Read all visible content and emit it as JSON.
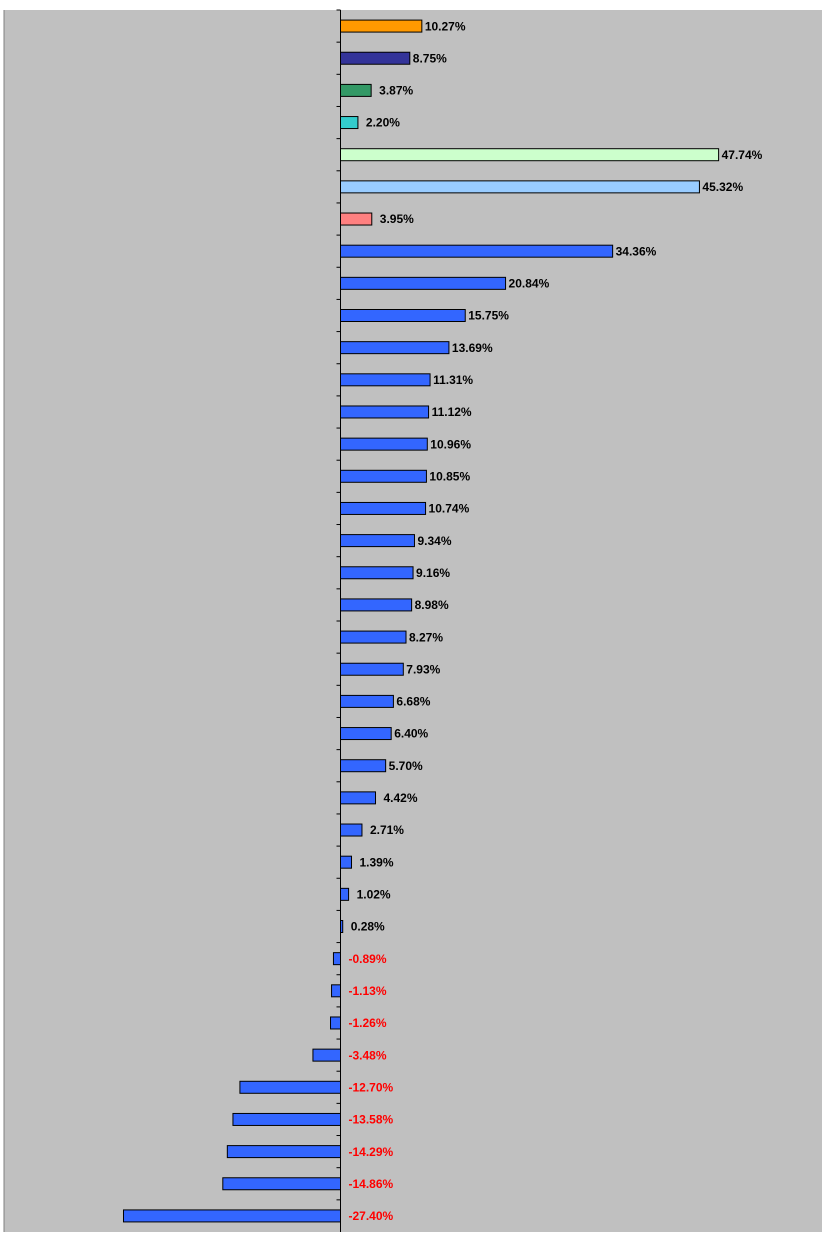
{
  "chart_data": {
    "type": "bar",
    "orientation": "horizontal",
    "title": "",
    "xlabel": "",
    "ylabel": "",
    "xlim": [
      -29,
      50
    ],
    "grid": false,
    "legend": "none",
    "colors": {
      "plot_background": "#c0c0c0",
      "positive_label": "#000000",
      "negative_label": "#ff0000",
      "bar_border": "#000000",
      "tick_marks": "#000000"
    },
    "bars": [
      {
        "label": "10.27%",
        "value": 10.27,
        "color": "#ff9900"
      },
      {
        "label": "8.75%",
        "value": 8.75,
        "color": "#333399"
      },
      {
        "label": "3.87%",
        "value": 3.87,
        "color": "#339966"
      },
      {
        "label": "2.20%",
        "value": 2.2,
        "color": "#33cccc"
      },
      {
        "label": "47.74%",
        "value": 47.74,
        "color": "#ccffcc"
      },
      {
        "label": "45.32%",
        "value": 45.32,
        "color": "#99ccff"
      },
      {
        "label": "3.95%",
        "value": 3.95,
        "color": "#ff8080"
      },
      {
        "label": "34.36%",
        "value": 34.36,
        "color": "#3366ff"
      },
      {
        "label": "20.84%",
        "value": 20.84,
        "color": "#3366ff"
      },
      {
        "label": "15.75%",
        "value": 15.75,
        "color": "#3366ff"
      },
      {
        "label": "13.69%",
        "value": 13.69,
        "color": "#3366ff"
      },
      {
        "label": "11.31%",
        "value": 11.31,
        "color": "#3366ff"
      },
      {
        "label": "11.12%",
        "value": 11.12,
        "color": "#3366ff"
      },
      {
        "label": "10.96%",
        "value": 10.96,
        "color": "#3366ff"
      },
      {
        "label": "10.85%",
        "value": 10.85,
        "color": "#3366ff"
      },
      {
        "label": "10.74%",
        "value": 10.74,
        "color": "#3366ff"
      },
      {
        "label": "9.34%",
        "value": 9.34,
        "color": "#3366ff"
      },
      {
        "label": "9.16%",
        "value": 9.16,
        "color": "#3366ff"
      },
      {
        "label": "8.98%",
        "value": 8.98,
        "color": "#3366ff"
      },
      {
        "label": "8.27%",
        "value": 8.27,
        "color": "#3366ff"
      },
      {
        "label": "7.93%",
        "value": 7.93,
        "color": "#3366ff"
      },
      {
        "label": "6.68%",
        "value": 6.68,
        "color": "#3366ff"
      },
      {
        "label": "6.40%",
        "value": 6.4,
        "color": "#3366ff"
      },
      {
        "label": "5.70%",
        "value": 5.7,
        "color": "#3366ff"
      },
      {
        "label": "4.42%",
        "value": 4.42,
        "color": "#3366ff"
      },
      {
        "label": "2.71%",
        "value": 2.71,
        "color": "#3366ff"
      },
      {
        "label": "1.39%",
        "value": 1.39,
        "color": "#3366ff"
      },
      {
        "label": "1.02%",
        "value": 1.02,
        "color": "#3366ff"
      },
      {
        "label": "0.28%",
        "value": 0.28,
        "color": "#3366ff"
      },
      {
        "label": "-0.89%",
        "value": -0.89,
        "color": "#3366ff"
      },
      {
        "label": "-1.13%",
        "value": -1.13,
        "color": "#3366ff"
      },
      {
        "label": "-1.26%",
        "value": -1.26,
        "color": "#3366ff"
      },
      {
        "label": "-3.48%",
        "value": -3.48,
        "color": "#3366ff"
      },
      {
        "label": "-12.70%",
        "value": -12.7,
        "color": "#3366ff"
      },
      {
        "label": "-13.58%",
        "value": -13.58,
        "color": "#3366ff"
      },
      {
        "label": "-14.29%",
        "value": -14.29,
        "color": "#3366ff"
      },
      {
        "label": "-14.86%",
        "value": -14.86,
        "color": "#3366ff"
      },
      {
        "label": "-27.40%",
        "value": -27.4,
        "color": "#3366ff"
      }
    ],
    "category_labels_note": "Category names are not legible in the screenshot (only scattered quote/dash glyphs visible)."
  }
}
